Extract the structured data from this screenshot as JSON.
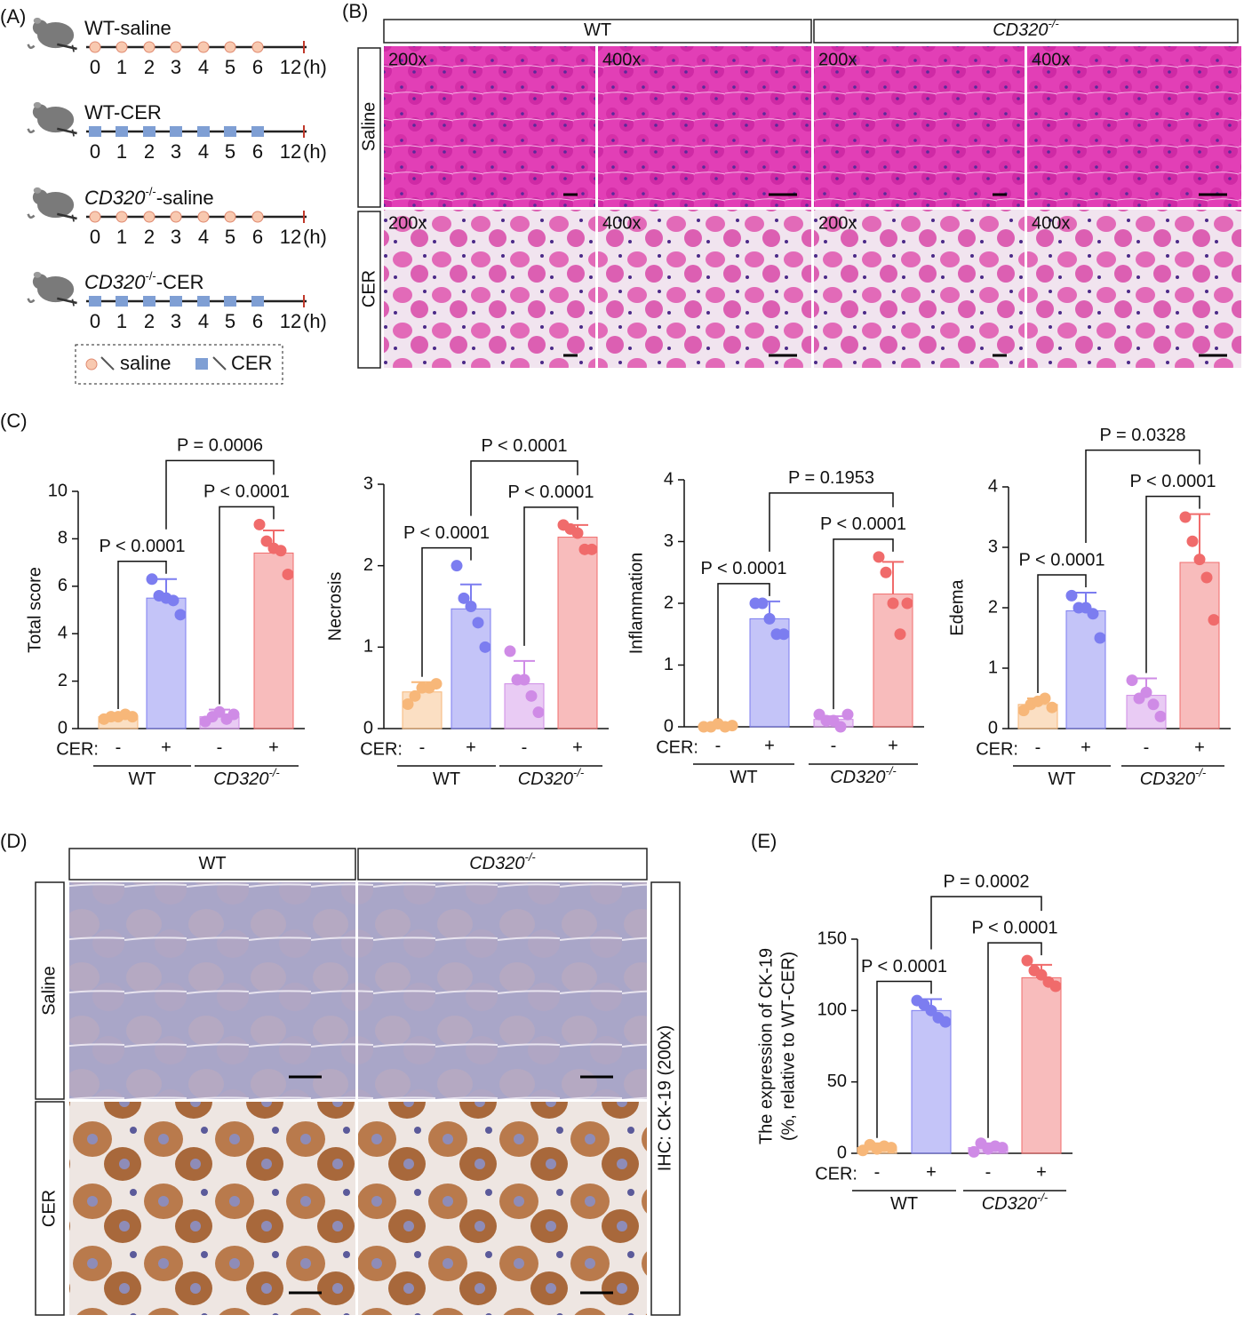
{
  "panel_labels": [
    "(A)",
    "(B)",
    "(C)",
    "(D)",
    "(E)"
  ],
  "timeline": {
    "groups": [
      {
        "prefix": "WT-saline",
        "marker": "saline"
      },
      {
        "prefix": "WT-CER",
        "marker": "CER"
      },
      {
        "prefix": "CD320",
        "sup": "-/-",
        "suffix": "-saline",
        "marker": "saline"
      },
      {
        "prefix": "CD320",
        "sup": "-/-",
        "suffix": "-CER",
        "marker": "CER"
      }
    ],
    "ticks": [
      "0",
      "1",
      "2",
      "3",
      "4",
      "5",
      "6",
      "12"
    ],
    "unit": "(h)",
    "legend": [
      "saline",
      "CER"
    ]
  },
  "histology": {
    "columns": [
      {
        "name": "WT"
      },
      {
        "name": "CD320",
        "sup": "-/-"
      }
    ],
    "rows": [
      "Saline",
      "CER"
    ],
    "magnifications": [
      "200x",
      "400x"
    ]
  },
  "ihc": {
    "columns": [
      {
        "name": "WT"
      },
      {
        "name": "CD320",
        "sup": "-/-"
      }
    ],
    "rows": [
      "Saline",
      "CER"
    ],
    "side_label": "IHC: CK-19 (200x)"
  },
  "chart_data": [
    {
      "type": "bar",
      "ylabel": [
        "Total score"
      ],
      "x_prefix": "CER:",
      "categories": [
        "-",
        "+",
        "-",
        "+"
      ],
      "groups": [
        {
          "name": "WT"
        },
        {
          "name": "CD320",
          "sup": "-/-"
        }
      ],
      "colors": [
        "#f7b779",
        "#7c7df0",
        "#cf8be6",
        "#f06b6b"
      ],
      "values": [
        0.5,
        5.5,
        0.5,
        7.4
      ],
      "errors": [
        0.1,
        0.8,
        0.3,
        0.95
      ],
      "points": [
        [
          0.4,
          0.5,
          0.5,
          0.6,
          0.5
        ],
        [
          6.3,
          5.6,
          5.5,
          5.4,
          4.8
        ],
        [
          0.3,
          0.5,
          0.7,
          0.4,
          0.6
        ],
        [
          8.6,
          7.9,
          7.6,
          7.5,
          6.5
        ]
      ],
      "ylim": [
        0,
        10
      ],
      "yticks": [
        0,
        2,
        4,
        6,
        8,
        10
      ],
      "comparisons": [
        "P < 0.0001",
        "P < 0.0001",
        "P = 0.0006"
      ]
    },
    {
      "type": "bar",
      "ylabel": [
        "Necrosis"
      ],
      "x_prefix": "CER:",
      "categories": [
        "-",
        "+",
        "-",
        "+"
      ],
      "groups": [
        {
          "name": "WT"
        },
        {
          "name": "CD320",
          "sup": "-/-"
        }
      ],
      "colors": [
        "#f7b779",
        "#7c7df0",
        "#cf8be6",
        "#f06b6b"
      ],
      "values": [
        0.45,
        1.47,
        0.55,
        2.35
      ],
      "errors": [
        0.12,
        0.3,
        0.28,
        0.15
      ],
      "points": [
        [
          0.3,
          0.4,
          0.5,
          0.5,
          0.55
        ],
        [
          2.0,
          1.6,
          1.5,
          1.3,
          1.0
        ],
        [
          0.95,
          0.6,
          0.6,
          0.4,
          0.2
        ],
        [
          2.5,
          2.45,
          2.4,
          2.2,
          2.2
        ]
      ],
      "ylim": [
        0,
        3
      ],
      "yticks": [
        0,
        1,
        2,
        3
      ],
      "comparisons": [
        "P < 0.0001",
        "P < 0.0001",
        "P < 0.0001"
      ]
    },
    {
      "type": "bar",
      "ylabel": [
        "Inflammation"
      ],
      "x_prefix": "CER:",
      "categories": [
        "-",
        "+",
        "-",
        "+"
      ],
      "groups": [
        {
          "name": "WT"
        },
        {
          "name": "CD320",
          "sup": "-/-"
        }
      ],
      "colors": [
        "#f7b779",
        "#7c7df0",
        "#cf8be6",
        "#f06b6b"
      ],
      "values": [
        0.02,
        1.75,
        0.12,
        2.15
      ],
      "errors": [
        0.01,
        0.28,
        0.05,
        0.52
      ],
      "points": [
        [
          0,
          0,
          0.05,
          0,
          0.02
        ],
        [
          2.0,
          2.0,
          1.75,
          1.5,
          1.5
        ],
        [
          0.2,
          0.1,
          0.1,
          0,
          0.2
        ],
        [
          2.75,
          2.5,
          2.0,
          1.5,
          2.0
        ]
      ],
      "ylim": [
        0,
        4
      ],
      "yticks": [
        0,
        1,
        2,
        3,
        4
      ],
      "comparisons": [
        "P < 0.0001",
        "P < 0.0001",
        "P = 0.1953"
      ]
    },
    {
      "type": "bar",
      "ylabel": [
        "Edema"
      ],
      "x_prefix": "CER:",
      "categories": [
        "-",
        "+",
        "-",
        "+"
      ],
      "groups": [
        {
          "name": "WT"
        },
        {
          "name": "CD320",
          "sup": "-/-"
        }
      ],
      "colors": [
        "#f7b779",
        "#7c7df0",
        "#cf8be6",
        "#f06b6b"
      ],
      "values": [
        0.4,
        1.95,
        0.55,
        2.75
      ],
      "errors": [
        0.1,
        0.3,
        0.28,
        0.8
      ],
      "points": [
        [
          0.3,
          0.4,
          0.45,
          0.5,
          0.35
        ],
        [
          2.2,
          2.0,
          2.0,
          1.9,
          1.5
        ],
        [
          0.8,
          0.5,
          0.6,
          0.4,
          0.2
        ],
        [
          3.5,
          3.1,
          2.8,
          2.5,
          1.8
        ]
      ],
      "ylim": [
        0,
        4
      ],
      "yticks": [
        0,
        1,
        2,
        3,
        4
      ],
      "comparisons": [
        "P < 0.0001",
        "P < 0.0001",
        "P = 0.0328"
      ]
    },
    {
      "type": "bar",
      "ylabel": [
        "The expression of CK-19",
        "(%, relative to WT-CER)"
      ],
      "x_prefix": "CER:",
      "categories": [
        "-",
        "+",
        "-",
        "+"
      ],
      "groups": [
        {
          "name": "WT"
        },
        {
          "name": "CD320",
          "sup": "-/-"
        }
      ],
      "colors": [
        "#f7b779",
        "#7c7df0",
        "#cf8be6",
        "#f06b6b"
      ],
      "values": [
        4,
        100,
        4,
        123
      ],
      "errors": [
        3,
        8,
        3,
        9
      ],
      "points": [
        [
          2,
          6,
          3,
          5,
          4
        ],
        [
          107,
          104,
          100,
          95,
          92
        ],
        [
          1,
          7,
          3,
          5,
          4
        ],
        [
          135,
          128,
          125,
          120,
          117
        ]
      ],
      "ylim": [
        0,
        150
      ],
      "yticks": [
        0,
        50,
        100,
        150
      ],
      "comparisons": [
        "P < 0.0001",
        "P < 0.0001",
        "P = 0.0002"
      ]
    }
  ]
}
